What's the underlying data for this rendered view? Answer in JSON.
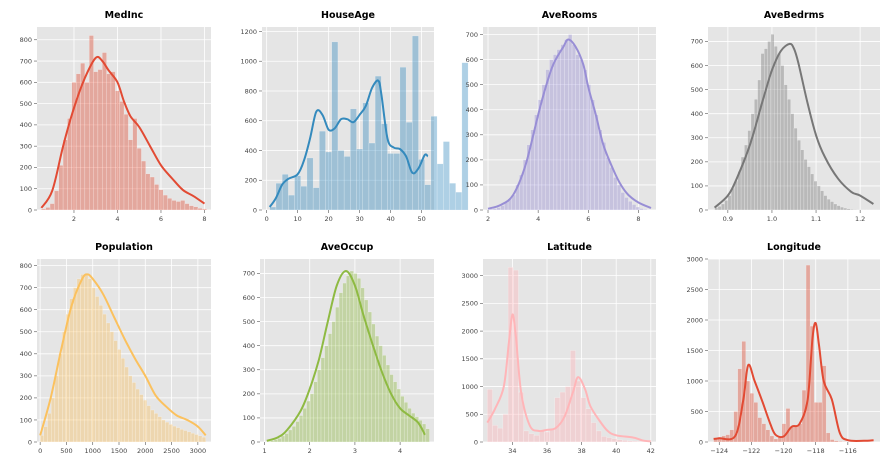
{
  "chart_data": [
    {
      "type": "histogram+kde",
      "title": "MedInc",
      "color": "#E24A33",
      "xlim": [
        0.3,
        8.3
      ],
      "ylim": [
        0,
        860
      ],
      "xticks": [
        2,
        4,
        6,
        8
      ],
      "yticks": [
        0,
        100,
        200,
        300,
        400,
        500,
        600,
        700,
        800
      ],
      "bins": {
        "start": 0.5,
        "width": 0.2,
        "counts": [
          5,
          12,
          30,
          90,
          210,
          330,
          430,
          600,
          640,
          690,
          600,
          820,
          650,
          660,
          740,
          640,
          650,
          560,
          510,
          450,
          330,
          430,
          290,
          230,
          170,
          155,
          120,
          95,
          70,
          55,
          45,
          40,
          45,
          30,
          20,
          15,
          8,
          5
        ]
      },
      "kde": [
        [
          0.5,
          10
        ],
        [
          1,
          90
        ],
        [
          1.5,
          300
        ],
        [
          2,
          480
        ],
        [
          2.5,
          620
        ],
        [
          3,
          715
        ],
        [
          3.3,
          700
        ],
        [
          3.6,
          655
        ],
        [
          4,
          600
        ],
        [
          4.3,
          510
        ],
        [
          4.6,
          440
        ],
        [
          5,
          390
        ],
        [
          5.5,
          300
        ],
        [
          6,
          210
        ],
        [
          6.5,
          150
        ],
        [
          7,
          95
        ],
        [
          7.5,
          65
        ],
        [
          8,
          30
        ]
      ]
    },
    {
      "type": "histogram+kde",
      "title": "HouseAge",
      "color": "#348ABD",
      "xlim": [
        -1.5,
        54
      ],
      "ylim": [
        0,
        1230
      ],
      "xticks": [
        0,
        10,
        20,
        30,
        40,
        50
      ],
      "yticks": [
        0,
        200,
        400,
        600,
        800,
        1000,
        1200
      ],
      "bins": {
        "start": 1,
        "width": 2,
        "counts": [
          20,
          180,
          240,
          100,
          230,
          160,
          350,
          150,
          530,
          390,
          1130,
          400,
          360,
          680,
          410,
          720,
          450,
          900,
          580,
          380,
          380,
          960,
          590,
          1170,
          340,
          170,
          630,
          310,
          460,
          180,
          120,
          990
        ]
      },
      "kde": [
        [
          1,
          20
        ],
        [
          3,
          80
        ],
        [
          5,
          170
        ],
        [
          7,
          210
        ],
        [
          10,
          240
        ],
        [
          12,
          330
        ],
        [
          14,
          480
        ],
        [
          16,
          660
        ],
        [
          18,
          640
        ],
        [
          20,
          540
        ],
        [
          22,
          550
        ],
        [
          24,
          610
        ],
        [
          26,
          610
        ],
        [
          28,
          590
        ],
        [
          30,
          640
        ],
        [
          32,
          700
        ],
        [
          34,
          820
        ],
        [
          36,
          870
        ],
        [
          37,
          780
        ],
        [
          39,
          480
        ],
        [
          41,
          420
        ],
        [
          43,
          410
        ],
        [
          45,
          360
        ],
        [
          47,
          250
        ],
        [
          49,
          280
        ],
        [
          51,
          370
        ],
        [
          52,
          360
        ]
      ]
    },
    {
      "type": "histogram+kde",
      "title": "AveRooms",
      "color": "#988ED5",
      "xlim": [
        1.8,
        8.7
      ],
      "ylim": [
        0,
        730
      ],
      "xticks": [
        2,
        4,
        6,
        8
      ],
      "yticks": [
        0,
        100,
        200,
        300,
        400,
        500,
        600,
        700
      ],
      "bins": {
        "start": 1.9,
        "width": 0.15,
        "counts": [
          2,
          4,
          6,
          10,
          18,
          30,
          45,
          60,
          100,
          140,
          200,
          260,
          320,
          380,
          440,
          500,
          560,
          600,
          620,
          640,
          660,
          680,
          700,
          660,
          620,
          600,
          560,
          500,
          440,
          380,
          320,
          270,
          210,
          170,
          130,
          100,
          70,
          50,
          35,
          22,
          12,
          6,
          3
        ]
      },
      "kde": [
        [
          2,
          5
        ],
        [
          2.5,
          20
        ],
        [
          3,
          60
        ],
        [
          3.5,
          180
        ],
        [
          4,
          380
        ],
        [
          4.3,
          490
        ],
        [
          4.6,
          580
        ],
        [
          5,
          650
        ],
        [
          5.2,
          680
        ],
        [
          5.5,
          650
        ],
        [
          5.8,
          580
        ],
        [
          6,
          490
        ],
        [
          6.3,
          380
        ],
        [
          6.6,
          260
        ],
        [
          7,
          160
        ],
        [
          7.3,
          100
        ],
        [
          7.6,
          60
        ],
        [
          8,
          30
        ],
        [
          8.5,
          8
        ]
      ]
    },
    {
      "type": "histogram+kde",
      "title": "AveBedrms",
      "color": "#777777",
      "xlim": [
        0.855,
        1.245
      ],
      "ylim": [
        0,
        760
      ],
      "xticks": [
        0.9,
        1.0,
        1.1,
        1.2
      ],
      "yticks": [
        0,
        100,
        200,
        300,
        400,
        500,
        600,
        700
      ],
      "bins": {
        "start": 0.87,
        "width": 0.0075,
        "counts": [
          10,
          15,
          25,
          40,
          60,
          90,
          120,
          160,
          220,
          270,
          330,
          400,
          460,
          540,
          650,
          670,
          700,
          730,
          680,
          650,
          600,
          520,
          460,
          400,
          340,
          290,
          250,
          210,
          180,
          150,
          120,
          100,
          80,
          60,
          45,
          35,
          25,
          18,
          12,
          8,
          5,
          3,
          2,
          1,
          1,
          1,
          1,
          1,
          1,
          1
        ]
      },
      "kde": [
        [
          0.87,
          10
        ],
        [
          0.9,
          60
        ],
        [
          0.92,
          130
        ],
        [
          0.95,
          270
        ],
        [
          0.98,
          460
        ],
        [
          1.0,
          580
        ],
        [
          1.02,
          660
        ],
        [
          1.04,
          690
        ],
        [
          1.05,
          670
        ],
        [
          1.06,
          610
        ],
        [
          1.08,
          450
        ],
        [
          1.1,
          310
        ],
        [
          1.12,
          220
        ],
        [
          1.15,
          130
        ],
        [
          1.18,
          75
        ],
        [
          1.2,
          60
        ],
        [
          1.23,
          25
        ]
      ]
    },
    {
      "type": "histogram+kde",
      "title": "Population",
      "color": "#FBC15E",
      "xlim": [
        -60,
        3250
      ],
      "ylim": [
        0,
        830
      ],
      "xticks": [
        0,
        500,
        1000,
        1500,
        2000,
        2500,
        3000
      ],
      "yticks": [
        0,
        100,
        200,
        300,
        400,
        500,
        600,
        700,
        800
      ],
      "bins": {
        "start": 0,
        "width": 70,
        "counts": [
          30,
          70,
          130,
          200,
          300,
          400,
          500,
          580,
          650,
          700,
          740,
          760,
          760,
          740,
          700,
          660,
          620,
          580,
          540,
          500,
          460,
          420,
          380,
          340,
          300,
          270,
          240,
          215,
          190,
          165,
          145,
          130,
          115,
          100,
          90,
          80,
          72,
          65,
          58,
          52,
          46,
          40,
          34,
          28,
          22
        ]
      },
      "kde": [
        [
          0,
          30
        ],
        [
          200,
          200
        ],
        [
          400,
          420
        ],
        [
          600,
          620
        ],
        [
          800,
          740
        ],
        [
          900,
          760
        ],
        [
          1000,
          740
        ],
        [
          1200,
          670
        ],
        [
          1400,
          570
        ],
        [
          1600,
          470
        ],
        [
          1800,
          380
        ],
        [
          2000,
          300
        ],
        [
          2200,
          210
        ],
        [
          2400,
          160
        ],
        [
          2600,
          120
        ],
        [
          2800,
          100
        ],
        [
          3000,
          70
        ],
        [
          3150,
          30
        ]
      ]
    },
    {
      "type": "histogram+kde",
      "title": "AveOccup",
      "color": "#8EBA42",
      "xlim": [
        0.9,
        4.75
      ],
      "ylim": [
        0,
        760
      ],
      "xticks": [
        1,
        2,
        3,
        4
      ],
      "yticks": [
        0,
        100,
        200,
        300,
        400,
        500,
        600,
        700
      ],
      "bins": {
        "start": 1.05,
        "width": 0.08,
        "counts": [
          3,
          6,
          10,
          15,
          25,
          35,
          50,
          65,
          85,
          110,
          140,
          170,
          200,
          250,
          300,
          350,
          400,
          450,
          500,
          560,
          620,
          660,
          690,
          710,
          700,
          680,
          640,
          590,
          540,
          490,
          440,
          400,
          360,
          320,
          280,
          250,
          220,
          190,
          165,
          140,
          120,
          105,
          90,
          75,
          55
        ]
      },
      "kde": [
        [
          1.05,
          5
        ],
        [
          1.3,
          20
        ],
        [
          1.5,
          50
        ],
        [
          1.8,
          130
        ],
        [
          2,
          220
        ],
        [
          2.2,
          340
        ],
        [
          2.4,
          500
        ],
        [
          2.6,
          650
        ],
        [
          2.8,
          710
        ],
        [
          3,
          650
        ],
        [
          3.2,
          520
        ],
        [
          3.4,
          400
        ],
        [
          3.6,
          290
        ],
        [
          3.8,
          200
        ],
        [
          4,
          140
        ],
        [
          4.2,
          110
        ],
        [
          4.4,
          80
        ],
        [
          4.55,
          30
        ]
      ]
    },
    {
      "type": "histogram+kde",
      "title": "Latitude",
      "color": "#FFB5B8",
      "xlim": [
        32.3,
        42.3
      ],
      "ylim": [
        0,
        3300
      ],
      "xticks": [
        34,
        36,
        38,
        40,
        42
      ],
      "yticks": [
        0,
        500,
        1000,
        1500,
        2000,
        2500,
        3000
      ],
      "bins": {
        "start": 32.55,
        "width": 0.3,
        "counts": [
          950,
          300,
          250,
          500,
          3150,
          3100,
          900,
          200,
          150,
          120,
          200,
          180,
          220,
          800,
          900,
          1000,
          1650,
          1100,
          800,
          600,
          350,
          200,
          100,
          80,
          60,
          40,
          30,
          20,
          15,
          10,
          8,
          5
        ]
      },
      "kde": [
        [
          32.55,
          350
        ],
        [
          33,
          600
        ],
        [
          33.5,
          1000
        ],
        [
          33.8,
          1800
        ],
        [
          34,
          2300
        ],
        [
          34.2,
          1900
        ],
        [
          34.5,
          900
        ],
        [
          35,
          300
        ],
        [
          35.5,
          200
        ],
        [
          36,
          220
        ],
        [
          36.5,
          250
        ],
        [
          37,
          450
        ],
        [
          37.5,
          900
        ],
        [
          37.8,
          1170
        ],
        [
          38.2,
          950
        ],
        [
          38.5,
          650
        ],
        [
          39,
          400
        ],
        [
          39.5,
          200
        ],
        [
          40,
          120
        ],
        [
          41,
          80
        ],
        [
          41.5,
          30
        ],
        [
          42,
          10
        ]
      ]
    },
    {
      "type": "histogram+kde",
      "title": "Longitude",
      "color": "#E24A33",
      "xlim": [
        -124.7,
        -114
      ],
      "ylim": [
        0,
        3000
      ],
      "xticks": [
        -124,
        -122,
        -120,
        -118,
        -116
      ],
      "yticks": [
        0,
        500,
        1000,
        1500,
        2000,
        2500,
        3000
      ],
      "bins": {
        "start": -124.35,
        "width": 0.25,
        "counts": [
          60,
          80,
          100,
          120,
          200,
          500,
          1200,
          1650,
          1000,
          800,
          650,
          400,
          300,
          200,
          100,
          50,
          80,
          300,
          550,
          250,
          250,
          300,
          850,
          2900,
          1900,
          650,
          650,
          1250,
          150,
          40,
          20,
          10,
          5
        ]
      },
      "kde": [
        [
          -124.35,
          50
        ],
        [
          -124,
          60
        ],
        [
          -123,
          100
        ],
        [
          -122.5,
          700
        ],
        [
          -122.2,
          1260
        ],
        [
          -121.8,
          1000
        ],
        [
          -121.3,
          650
        ],
        [
          -120.8,
          280
        ],
        [
          -120.5,
          120
        ],
        [
          -120,
          90
        ],
        [
          -119.5,
          250
        ],
        [
          -119,
          300
        ],
        [
          -118.5,
          700
        ],
        [
          -118.2,
          1700
        ],
        [
          -118,
          1950
        ],
        [
          -117.8,
          1600
        ],
        [
          -117.5,
          1000
        ],
        [
          -117,
          700
        ],
        [
          -116.5,
          150
        ],
        [
          -116,
          30
        ],
        [
          -115,
          20
        ],
        [
          -114.4,
          30
        ]
      ]
    }
  ]
}
